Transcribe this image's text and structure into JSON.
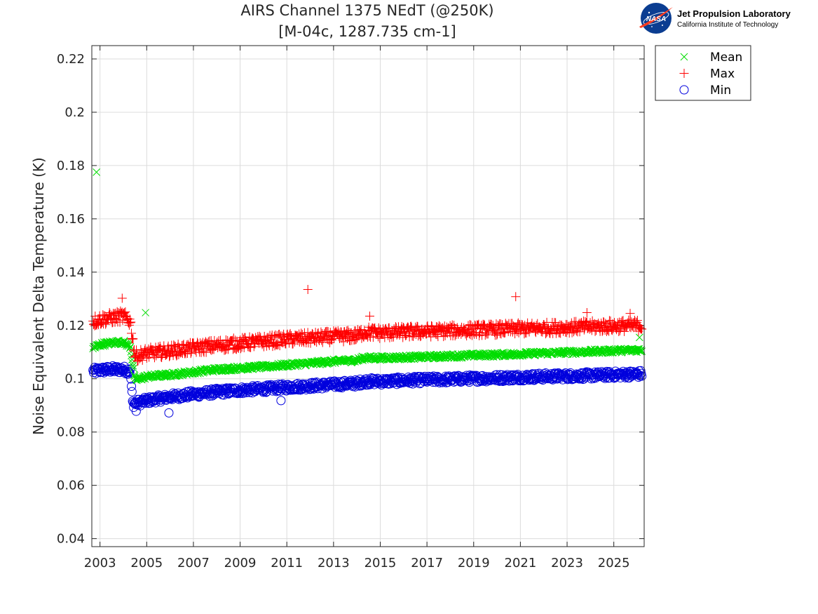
{
  "chart_data": {
    "type": "scatter",
    "title": "AIRS Channel 1375 NEdT (@250K)",
    "subtitle": "[M-04c, 1287.735 cm-1]",
    "xlabel": "",
    "ylabel": "Noise Equivalent Delta Temperature (K)",
    "xlim": [
      2002.65,
      2026.3
    ],
    "ylim": [
      0.037,
      0.225
    ],
    "xticks": [
      "2003",
      "2005",
      "2007",
      "2009",
      "2011",
      "2013",
      "2015",
      "2017",
      "2019",
      "2021",
      "2023",
      "2025"
    ],
    "yticks": [
      "0.04",
      "0.06",
      "0.08",
      "0.1",
      "0.12",
      "0.14",
      "0.16",
      "0.18",
      "0.2",
      "0.22"
    ],
    "grid": true,
    "legend_position": "outside-top-right",
    "series": [
      {
        "name": "Mean",
        "marker": "x",
        "color": "#00dd00",
        "trend": [
          [
            2002.7,
            0.1115
          ],
          [
            2003.0,
            0.1128
          ],
          [
            2003.5,
            0.1135
          ],
          [
            2004.0,
            0.1138
          ],
          [
            2004.3,
            0.112
          ],
          [
            2004.5,
            0.0995
          ],
          [
            2005.0,
            0.1008
          ],
          [
            2006.0,
            0.1015
          ],
          [
            2007.0,
            0.1025
          ],
          [
            2008.0,
            0.1035
          ],
          [
            2009.0,
            0.104
          ],
          [
            2010.0,
            0.1045
          ],
          [
            2011.0,
            0.1052
          ],
          [
            2012.0,
            0.1058
          ],
          [
            2013.0,
            0.1065
          ],
          [
            2014.0,
            0.107
          ],
          [
            2014.3,
            0.1078
          ],
          [
            2015.0,
            0.1078
          ],
          [
            2016.0,
            0.108
          ],
          [
            2017.0,
            0.1082
          ],
          [
            2018.0,
            0.1085
          ],
          [
            2019.0,
            0.1088
          ],
          [
            2020.0,
            0.109
          ],
          [
            2021.0,
            0.1093
          ],
          [
            2022.0,
            0.1096
          ],
          [
            2023.0,
            0.1099
          ],
          [
            2024.0,
            0.1102
          ],
          [
            2025.0,
            0.1105
          ],
          [
            2026.2,
            0.1108
          ]
        ],
        "spread": 0.0008,
        "outliers": [
          [
            2002.85,
            0.1775
          ],
          [
            2004.95,
            0.1248
          ],
          [
            2026.1,
            0.1155
          ]
        ]
      },
      {
        "name": "Max",
        "marker": "+",
        "color": "#ff0000",
        "trend": [
          [
            2002.7,
            0.1215
          ],
          [
            2003.0,
            0.1222
          ],
          [
            2003.5,
            0.1228
          ],
          [
            2004.0,
            0.1235
          ],
          [
            2004.3,
            0.1215
          ],
          [
            2004.5,
            0.1085
          ],
          [
            2005.0,
            0.1095
          ],
          [
            2006.0,
            0.1105
          ],
          [
            2007.0,
            0.1115
          ],
          [
            2008.0,
            0.1125
          ],
          [
            2009.0,
            0.1133
          ],
          [
            2010.0,
            0.114
          ],
          [
            2011.0,
            0.1148
          ],
          [
            2012.0,
            0.1152
          ],
          [
            2013.0,
            0.1158
          ],
          [
            2014.0,
            0.1162
          ],
          [
            2014.3,
            0.1175
          ],
          [
            2015.0,
            0.1172
          ],
          [
            2016.0,
            0.1175
          ],
          [
            2017.0,
            0.1178
          ],
          [
            2018.0,
            0.118
          ],
          [
            2019.0,
            0.1183
          ],
          [
            2020.0,
            0.1185
          ],
          [
            2021.0,
            0.1188
          ],
          [
            2022.0,
            0.119
          ],
          [
            2023.0,
            0.1193
          ],
          [
            2024.0,
            0.1195
          ],
          [
            2025.0,
            0.1198
          ],
          [
            2026.2,
            0.12
          ]
        ],
        "spread": 0.0022,
        "outliers": [
          [
            2003.95,
            0.1302
          ],
          [
            2011.9,
            0.1335
          ],
          [
            2020.8,
            0.1308
          ],
          [
            2023.85,
            0.1248
          ],
          [
            2014.55,
            0.1235
          ],
          [
            2025.7,
            0.1245
          ]
        ]
      },
      {
        "name": "Min",
        "marker": "o",
        "color": "#0000dd",
        "trend": [
          [
            2002.7,
            0.1028
          ],
          [
            2003.0,
            0.1032
          ],
          [
            2003.5,
            0.1035
          ],
          [
            2004.0,
            0.1035
          ],
          [
            2004.3,
            0.1028
          ],
          [
            2004.4,
            0.0905
          ],
          [
            2005.0,
            0.0918
          ],
          [
            2006.0,
            0.0932
          ],
          [
            2007.0,
            0.0942
          ],
          [
            2008.0,
            0.095
          ],
          [
            2009.0,
            0.0957
          ],
          [
            2010.0,
            0.0962
          ],
          [
            2011.0,
            0.0968
          ],
          [
            2012.0,
            0.0973
          ],
          [
            2013.0,
            0.0978
          ],
          [
            2014.0,
            0.0983
          ],
          [
            2014.3,
            0.099
          ],
          [
            2015.0,
            0.099
          ],
          [
            2016.0,
            0.0993
          ],
          [
            2017.0,
            0.0996
          ],
          [
            2018.0,
            0.0998
          ],
          [
            2019.0,
            0.1001
          ],
          [
            2020.0,
            0.1003
          ],
          [
            2021.0,
            0.1006
          ],
          [
            2022.0,
            0.1008
          ],
          [
            2023.0,
            0.101
          ],
          [
            2024.0,
            0.1012
          ],
          [
            2025.0,
            0.1015
          ],
          [
            2026.2,
            0.1018
          ]
        ],
        "spread": 0.0014,
        "outliers": [
          [
            2005.95,
            0.0872
          ],
          [
            2004.55,
            0.0878
          ],
          [
            2010.75,
            0.0918
          ]
        ]
      }
    ]
  },
  "logo": {
    "org_name": "Jet Propulsion Laboratory",
    "org_sub": "California Institute of Technology",
    "badge_text": "NASA",
    "badge_color": "#0b3d91",
    "swoosh_color": "#fc3d21"
  }
}
